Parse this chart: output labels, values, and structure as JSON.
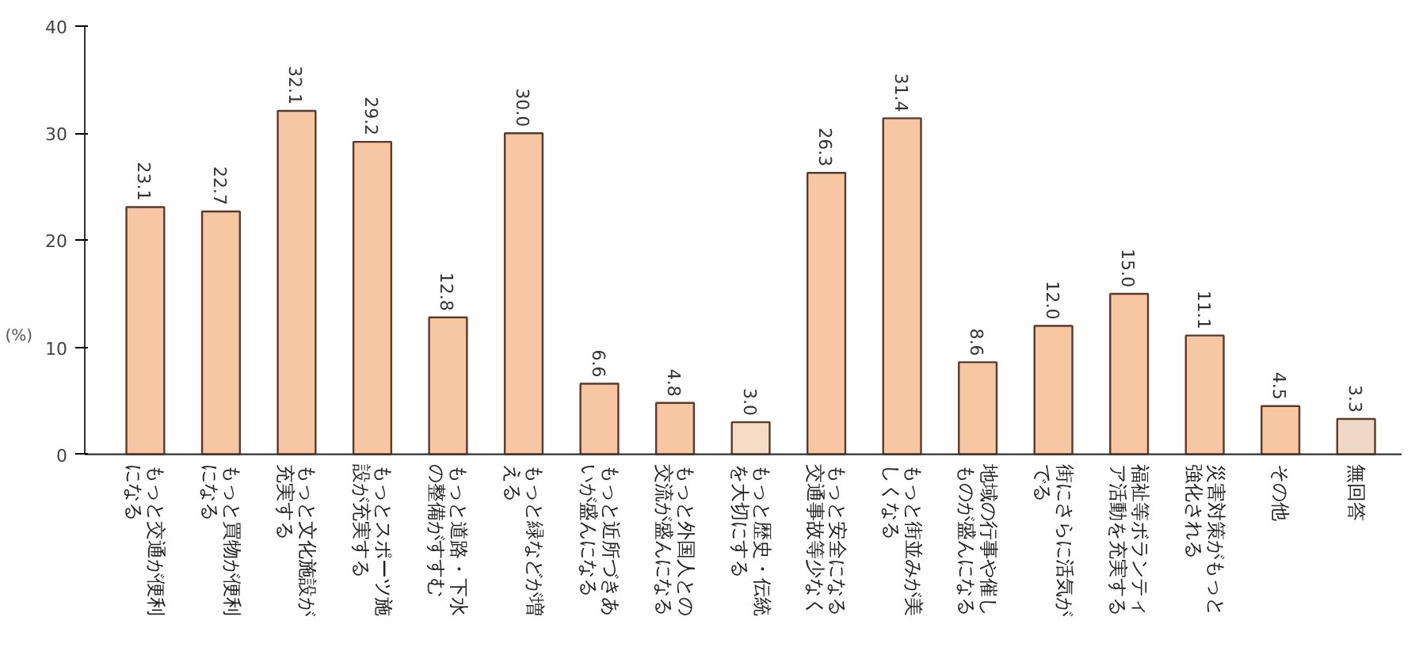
{
  "chart_data": {
    "type": "bar",
    "categories": [
      "もっと交通が便利になる",
      "もっと買物が便利になる",
      "もっと文化施設が充実する",
      "もっとスポーツ施設が充実する",
      "もっと道路・下水の整備がすすむ",
      "もっと緑などが増える",
      "もっと近所づきあいが盛んになる",
      "もっと外国人との交流が盛んになる",
      "もっと歴史・伝統を大切にする",
      "もっと安全になる交通事故等少なく",
      "もっと街並みが美しくなる",
      "地域の行事や催しものが盛んになる",
      "街にさらに活気がでる",
      "福祉等ボランティア活動を充実する",
      "災害対策がもっと強化される",
      "その他",
      "無回答"
    ],
    "values": [
      23.1,
      22.7,
      32.1,
      29.2,
      12.8,
      30.0,
      6.6,
      4.8,
      3.0,
      26.3,
      31.4,
      8.6,
      12.0,
      15.0,
      11.1,
      4.5,
      3.3
    ],
    "colors": [
      "#f7c6a3",
      "#f7c6a3",
      "#f7c6a3",
      "#f7c6a3",
      "#f7c6a3",
      "#f7c6a3",
      "#f7c6a3",
      "#f7c6a3",
      "#f5dcc6",
      "#f7c6a3",
      "#f7c6a3",
      "#f7c6a3",
      "#f7c6a3",
      "#f7c6a3",
      "#f7c6a3",
      "#f7c6a3",
      "#f0d8c6"
    ],
    "value_labels": [
      "23.1",
      "22.7",
      "32.1",
      "29.2",
      "12.8",
      "30.0",
      "6.6",
      "4.8",
      "3.0",
      "26.3",
      "31.4",
      "8.6",
      "12.0",
      "15.0",
      "11.1",
      "4.5",
      "3.3"
    ],
    "ylabel": "(%)",
    "ylim": [
      0,
      40
    ],
    "yticks": [
      0,
      10,
      20,
      30,
      40
    ],
    "grid": false
  }
}
